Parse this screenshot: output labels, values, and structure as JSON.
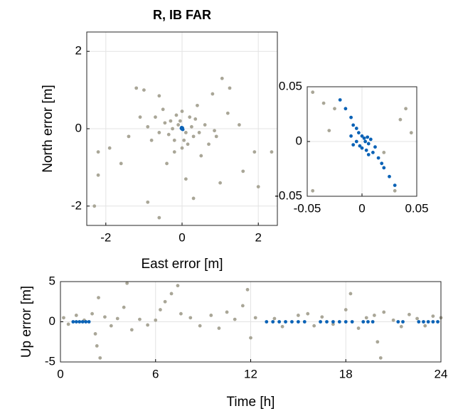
{
  "chart_data": [
    {
      "type": "scatter",
      "title": "R, IB FAR",
      "x_label": "East error [m]",
      "y_label": "North error [m]",
      "xlim": [
        -2.5,
        2.5
      ],
      "ylim": [
        -2.5,
        2.5
      ],
      "xticks": [
        -2,
        0,
        2
      ],
      "yticks": [
        -2,
        0,
        2
      ],
      "grid": true,
      "series": [
        {
          "color": "#a9a697",
          "x": [
            -1.2,
            -1.0,
            -0.6,
            1.05,
            1.25,
            0.8,
            -2.2,
            -2.2,
            -1.9,
            -1.6,
            2.35,
            1.6,
            1.0,
            -0.9,
            -0.6,
            0.3,
            0.1,
            -0.4,
            0.5,
            -0.8,
            0.9,
            -1.1,
            1.2,
            -0.5,
            0.4,
            -0.3,
            0.2,
            -0.2,
            0.3,
            -0.1,
            0.1,
            0.6,
            -0.6,
            0.0,
            0.0,
            -1.4,
            1.5,
            -0.2,
            0.7,
            -0.7,
            0.25,
            -0.35,
            1.9,
            2.0,
            -2.3,
            -0.45,
            0.45,
            -0.15,
            0.15,
            -0.9,
            0.85,
            -0.25,
            0.35,
            0.05,
            -0.05
          ],
          "values": [
            1.05,
            1.0,
            0.85,
            1.3,
            1.05,
            0.9,
            -0.6,
            -1.2,
            -0.5,
            -0.9,
            -0.6,
            -1.1,
            -1.4,
            -1.9,
            -2.3,
            -1.8,
            -1.3,
            -0.9,
            -0.7,
            -0.3,
            -0.2,
            0.3,
            0.4,
            0.5,
            0.6,
            0.2,
            0.3,
            -0.3,
            -0.2,
            0.1,
            -0.1,
            0.1,
            -0.1,
            0.45,
            -0.5,
            -0.2,
            0.1,
            -0.6,
            -0.4,
            0.3,
            0.05,
            -0.15,
            -0.6,
            -1.5,
            -2.0,
            0.15,
            -0.1,
            0.35,
            -0.4,
            0.05,
            -0.05,
            0.0,
            0.25,
            -0.3,
            0.2
          ]
        },
        {
          "color": "#0a62b6",
          "x": [
            0.01,
            -0.01,
            0.0,
            0.02,
            -0.02
          ],
          "values": [
            0.02,
            0.03,
            -0.01,
            -0.02,
            0.01
          ]
        }
      ]
    },
    {
      "type": "scatter",
      "xlim": [
        -0.05,
        0.05
      ],
      "ylim": [
        -0.05,
        0.05
      ],
      "xticks": [
        -0.05,
        0,
        0.05
      ],
      "yticks": [
        -0.05,
        0,
        0.05
      ],
      "grid": true,
      "series": [
        {
          "color": "#a9a697",
          "x": [
            -0.045,
            -0.025,
            -0.035,
            0.04,
            0.045,
            0.035,
            -0.045,
            0.03,
            0.02,
            -0.03
          ],
          "values": [
            0.045,
            0.03,
            0.035,
            0.03,
            0.008,
            0.02,
            -0.045,
            -0.045,
            -0.01,
            0.01
          ]
        },
        {
          "color": "#0a62b6",
          "x": [
            -0.02,
            -0.015,
            -0.01,
            -0.008,
            -0.005,
            0.0,
            0.003,
            0.006,
            0.01,
            0.015,
            0.02,
            0.025,
            0.03,
            -0.005,
            0.005,
            0.0,
            -0.008,
            0.008,
            0.004,
            -0.003,
            0.012,
            -0.01,
            0.002,
            -0.002,
            0.006,
            0.018
          ],
          "values": [
            0.038,
            0.03,
            0.022,
            0.015,
            0.012,
            0.005,
            0.0,
            -0.002,
            -0.01,
            -0.015,
            -0.024,
            -0.032,
            -0.04,
            0.0,
            0.004,
            -0.006,
            -0.003,
            0.002,
            -0.008,
            0.008,
            -0.005,
            0.005,
            0.003,
            -0.004,
            -0.012,
            -0.02
          ]
        }
      ]
    },
    {
      "type": "scatter",
      "x_label": "Time [h]",
      "y_label": "Up error [m]",
      "xlim": [
        0,
        24
      ],
      "ylim": [
        -5,
        5
      ],
      "xticks": [
        0,
        6,
        12,
        18,
        24
      ],
      "yticks": [
        -5,
        0,
        5
      ],
      "grid": true,
      "series": [
        {
          "color": "#a9a697",
          "x": [
            0.2,
            0.5,
            1.0,
            1.5,
            2.0,
            2.2,
            2.3,
            2.5,
            2.4,
            2.8,
            3.2,
            3.6,
            4.0,
            4.2,
            4.5,
            5.0,
            5.5,
            6.0,
            6.3,
            6.6,
            7.0,
            7.4,
            7.6,
            8.2,
            8.8,
            9.5,
            10.0,
            10.5,
            11.0,
            11.5,
            11.8,
            12.0,
            12.3,
            13.5,
            14.0,
            15.0,
            15.6,
            16.0,
            16.5,
            17.2,
            18.0,
            18.3,
            18.8,
            19.3,
            19.8,
            20.0,
            20.2,
            20.4,
            21.0,
            21.5,
            22.0,
            22.5,
            23.0,
            23.5,
            24.0
          ],
          "values": [
            0.5,
            -0.3,
            0.8,
            0.2,
            1.0,
            -1.5,
            -3.0,
            -4.5,
            3.0,
            0.6,
            -0.5,
            0.4,
            1.8,
            4.8,
            -1.0,
            0.3,
            -0.4,
            0.2,
            1.5,
            2.5,
            3.5,
            4.5,
            1.0,
            0.5,
            -0.5,
            0.8,
            -0.8,
            1.2,
            0.3,
            2.0,
            4.0,
            -2.0,
            0.5,
            0.4,
            -0.6,
            0.8,
            1.0,
            -0.5,
            0.6,
            -0.3,
            1.5,
            3.5,
            -0.8,
            0.5,
            0.8,
            -2.5,
            -4.5,
            1.2,
            0.2,
            -0.6,
            0.9,
            0.4,
            -0.5,
            0.7,
            0.5
          ]
        },
        {
          "color": "#0a62b6",
          "x": [
            0.8,
            1.0,
            1.2,
            1.4,
            1.6,
            1.8,
            13.0,
            13.4,
            13.8,
            14.2,
            14.6,
            15.0,
            15.4,
            16.4,
            16.8,
            17.2,
            17.6,
            18.0,
            18.4,
            19.1,
            19.4,
            19.7,
            21.3,
            21.6,
            22.6,
            22.9,
            23.2,
            23.5,
            23.8
          ],
          "values": [
            0,
            0,
            0,
            0,
            0,
            0,
            0,
            0,
            0,
            0,
            0,
            0,
            0,
            0,
            0,
            0,
            0,
            0,
            0,
            0,
            0,
            0,
            0,
            0,
            0,
            0,
            0,
            0,
            0
          ]
        }
      ]
    }
  ]
}
